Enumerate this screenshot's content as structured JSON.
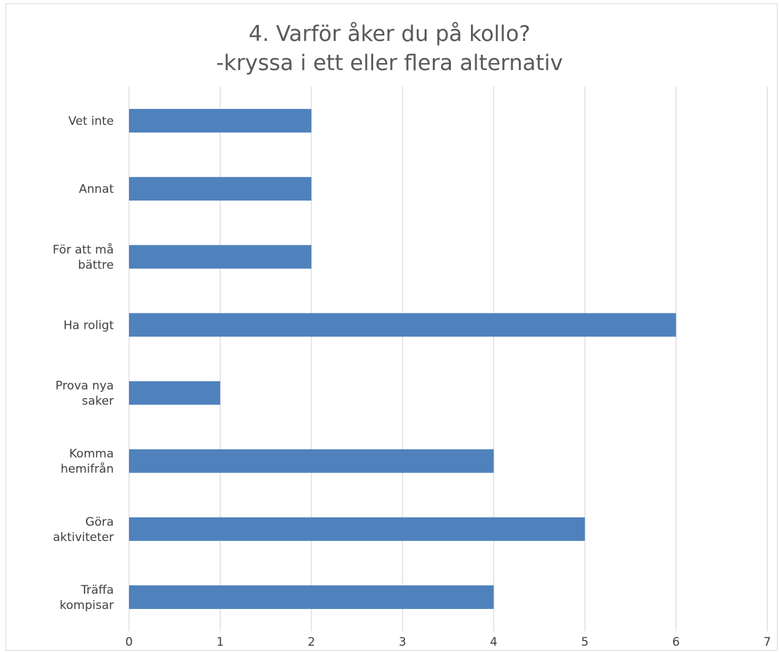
{
  "chart_data": {
    "type": "bar",
    "orientation": "horizontal",
    "title": "4. Varför åker du på kollo?",
    "subtitle": "-kryssa i ett eller flera alternativ",
    "categories": [
      "Vet inte",
      "Annat",
      "För att må bättre",
      "Ha roligt",
      "Prova nya saker",
      "Komma hemifrån",
      "Göra aktiviteter",
      "Träffa kompisar"
    ],
    "category_lines": [
      [
        "Vet inte"
      ],
      [
        "Annat"
      ],
      [
        "För att må",
        "bättre"
      ],
      [
        "Ha roligt"
      ],
      [
        "Prova nya",
        "saker"
      ],
      [
        "Komma",
        "hemifrån"
      ],
      [
        "Göra",
        "aktiviteter"
      ],
      [
        "Träffa",
        "kompisar"
      ]
    ],
    "values": [
      2,
      2,
      2,
      6,
      1,
      4,
      5,
      4
    ],
    "xlim": [
      0,
      7
    ],
    "xticks": [
      "0",
      "1",
      "2",
      "3",
      "4",
      "5",
      "6",
      "7"
    ],
    "xlabel": "",
    "ylabel": "",
    "grid": true,
    "legend": "none",
    "bar_color": "#4f81bd",
    "grid_color": "#d9d9d9"
  }
}
